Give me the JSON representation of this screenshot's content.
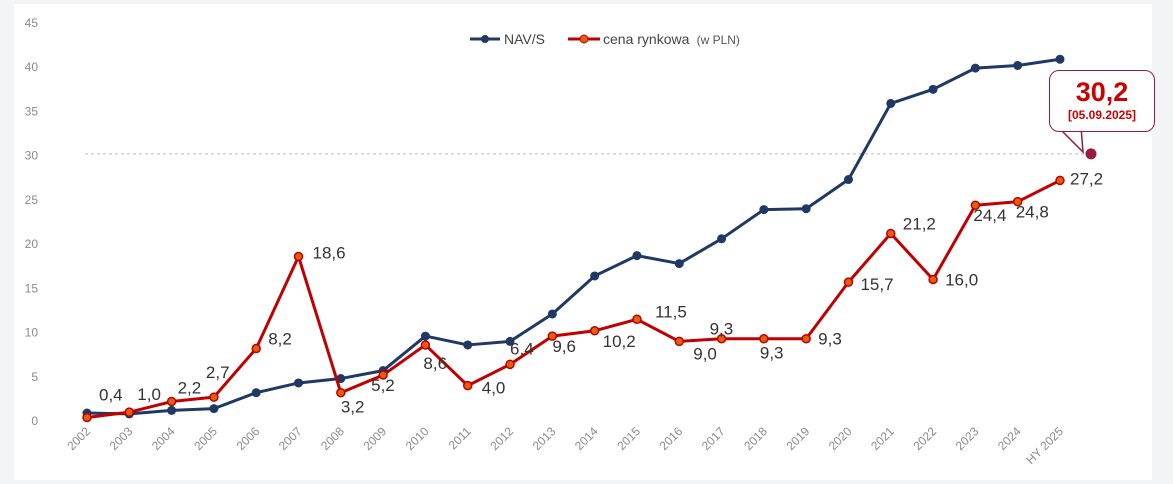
{
  "chart_data": {
    "type": "line",
    "title": "",
    "xlabel": "",
    "ylabel": "",
    "ylim": [
      0,
      45
    ],
    "yticks": [
      0,
      5,
      10,
      15,
      20,
      25,
      30,
      35,
      40,
      45
    ],
    "categories": [
      "2002",
      "2003",
      "2004",
      "2005",
      "2006",
      "2007",
      "2008",
      "2009",
      "2010",
      "2011",
      "2012",
      "2013",
      "2014",
      "2015",
      "2016",
      "2017",
      "2018",
      "2019",
      "2020",
      "2021",
      "2022",
      "2023",
      "2024",
      "HY 2025"
    ],
    "series": [
      {
        "name": "NAV/S",
        "color": "#1f3864",
        "values": [
          0.9,
          0.8,
          1.2,
          1.4,
          3.2,
          4.3,
          4.8,
          5.7,
          9.6,
          8.6,
          9.0,
          12.1,
          16.4,
          18.7,
          17.8,
          20.6,
          23.9,
          24.0,
          27.3,
          35.9,
          37.5,
          39.9,
          40.2,
          40.9
        ]
      },
      {
        "name": "cena rynkowa",
        "name_suffix": "(w PLN)",
        "color": "#c00000",
        "values": [
          0.4,
          1.0,
          2.2,
          2.7,
          8.2,
          18.6,
          3.2,
          5.2,
          8.6,
          4.0,
          6.4,
          9.6,
          10.2,
          11.5,
          9.0,
          9.3,
          9.3,
          9.3,
          15.7,
          21.2,
          16.0,
          24.4,
          24.8,
          27.2
        ],
        "labels": [
          "0,4",
          "1,0",
          "2,2",
          "2,7",
          "8,2",
          "18,6",
          "3,2",
          "5,2",
          "8,6",
          "4,0",
          "6,4",
          "9,6",
          "10,2",
          "11,5",
          "9,0",
          "9,3",
          "9,3",
          "9,3",
          "15,7",
          "21,2",
          "16,0",
          "24,4",
          "24,8",
          "27,2"
        ]
      }
    ],
    "reference_line": {
      "value": 30.2,
      "color": "#9b1b3f"
    },
    "callout": {
      "value": "30,2",
      "date": "[05.09.2025]"
    },
    "legend_position": "top-center",
    "grid": false
  }
}
